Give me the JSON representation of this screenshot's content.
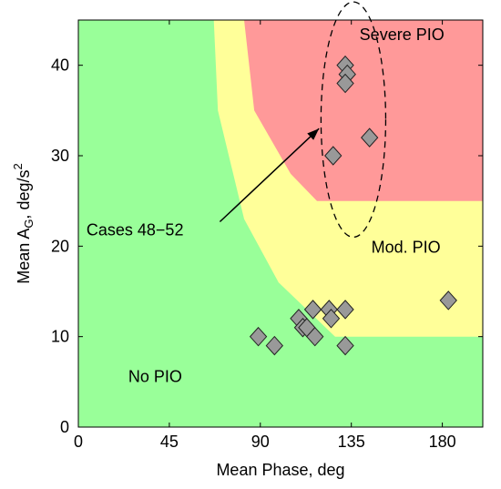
{
  "chart_data": {
    "type": "scatter",
    "xlabel": "Mean Phase, deg",
    "ylabel_main": "Mean A",
    "ylabel_sub": "G",
    "ylabel_rest": ", deg/s",
    "ylabel_sup": "2",
    "xlim": [
      0,
      200
    ],
    "ylim": [
      0,
      45
    ],
    "xticks": [
      0,
      45,
      90,
      135,
      180
    ],
    "yticks": [
      0,
      10,
      20,
      30,
      40
    ],
    "grid": false,
    "colors": {
      "no_pio": "#99ff99",
      "mod_pio": "#ffff99",
      "severe_pio": "#ff9999",
      "marker": "#999999",
      "axis": "#000000"
    },
    "regions": [
      {
        "label": "No PIO",
        "color": "no_pio",
        "label_at": [
          38,
          5
        ]
      },
      {
        "label": "Mod. PIO",
        "color": "mod_pio",
        "label_at": [
          162,
          19.3
        ]
      },
      {
        "label": "Severe PIO",
        "color": "severe_pio",
        "label_at": [
          160,
          42.8
        ]
      }
    ],
    "boundary_mod": [
      [
        67,
        45
      ],
      [
        69,
        35
      ],
      [
        82,
        23
      ],
      [
        99,
        16
      ],
      [
        127,
        10
      ],
      [
        200,
        10
      ]
    ],
    "boundary_severe": [
      [
        82,
        45
      ],
      [
        87,
        35
      ],
      [
        105,
        28
      ],
      [
        118,
        25
      ],
      [
        200,
        25
      ]
    ],
    "points": [
      [
        89,
        10
      ],
      [
        97,
        9
      ],
      [
        109,
        12
      ],
      [
        111,
        11
      ],
      [
        113,
        11
      ],
      [
        116,
        13
      ],
      [
        117,
        10
      ],
      [
        124,
        13
      ],
      [
        125,
        12
      ],
      [
        132,
        13
      ],
      [
        132,
        9
      ],
      [
        183,
        14
      ],
      [
        126,
        30
      ],
      [
        144,
        32
      ],
      [
        132,
        40
      ],
      [
        133,
        39
      ],
      [
        132,
        38
      ]
    ],
    "annotation": {
      "text": "Cases 48−52",
      "text_at": [
        4,
        21.2
      ],
      "arrow_from": [
        70,
        22.7
      ],
      "arrow_to": [
        119,
        33
      ],
      "ellipse_center": [
        136,
        34
      ],
      "ellipse_radii": [
        16,
        13
      ]
    }
  }
}
